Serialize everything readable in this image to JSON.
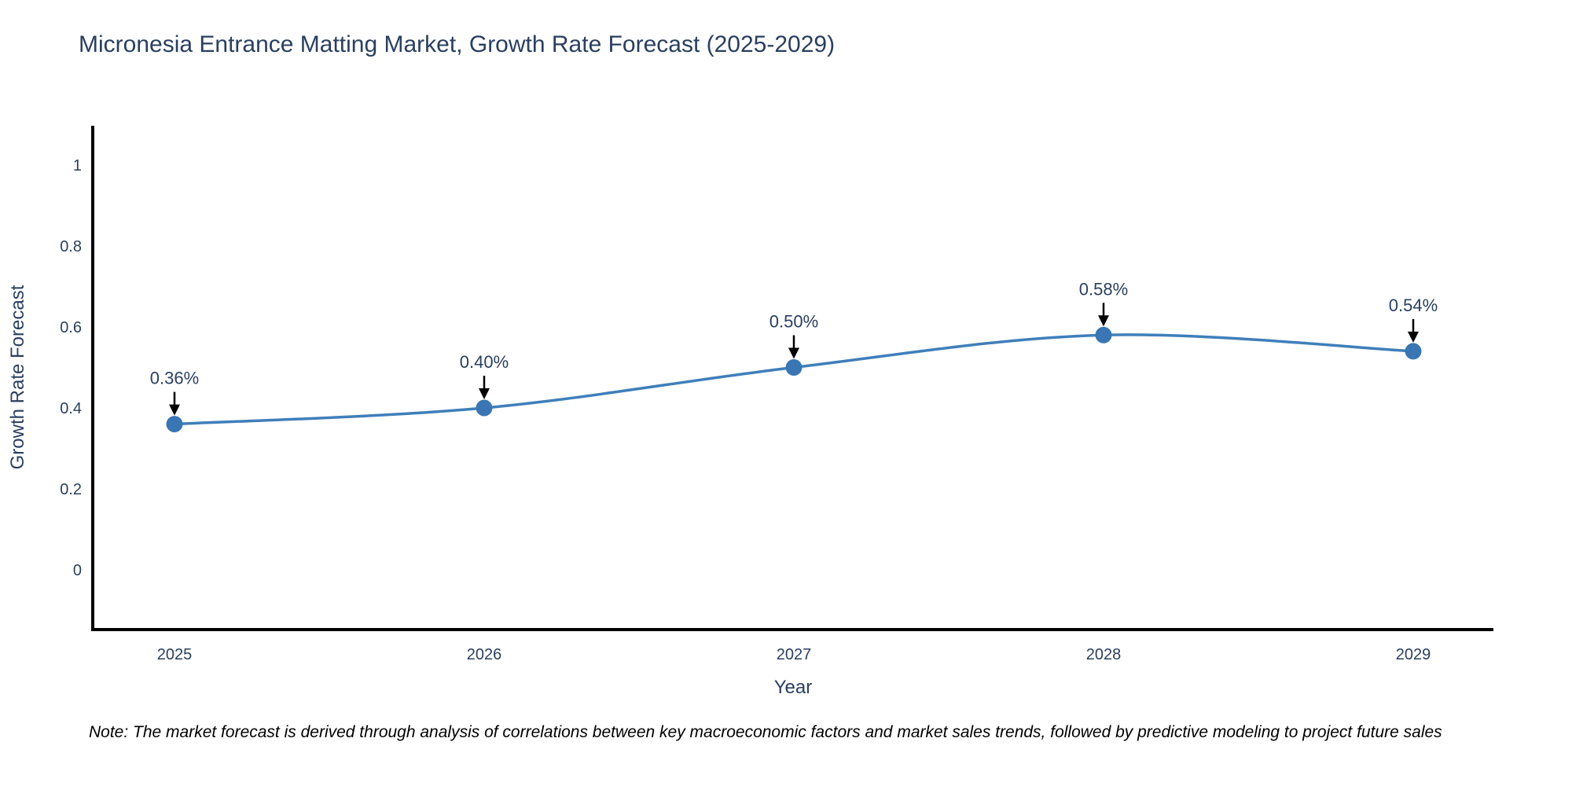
{
  "chart_data": {
    "type": "line",
    "title": "Micronesia Entrance Matting Market, Growth Rate Forecast (2025-2029)",
    "xlabel": "Year",
    "ylabel": "Growth Rate Forecast",
    "categories": [
      "2025",
      "2026",
      "2027",
      "2028",
      "2029"
    ],
    "series": [
      {
        "name": "Growth Rate Forecast",
        "values": [
          0.36,
          0.4,
          0.5,
          0.58,
          0.54
        ]
      }
    ],
    "point_labels": [
      "0.36%",
      "0.40%",
      "0.50%",
      "0.58%",
      "0.54%"
    ],
    "y_ticks": [
      "1",
      "0.8",
      "0.6",
      "0.4",
      "0.2",
      "0"
    ],
    "y_tick_values": [
      1,
      0.8,
      0.6,
      0.4,
      0.2,
      0
    ],
    "ylim": [
      -0.148,
      1.097
    ],
    "grid": false,
    "legend": "none",
    "line_shape": "spline",
    "colors": {
      "line": "#3f7fba",
      "marker": "#3a76b3",
      "arrow": "#000000",
      "title_text": "#2a3f5f",
      "axis_text": "#2a3f5f",
      "axis_line": "#000000"
    }
  },
  "note": "Note: The market forecast is derived through analysis of correlations between key macroeconomic factors and market sales trends, followed by predictive modeling to project future sales"
}
